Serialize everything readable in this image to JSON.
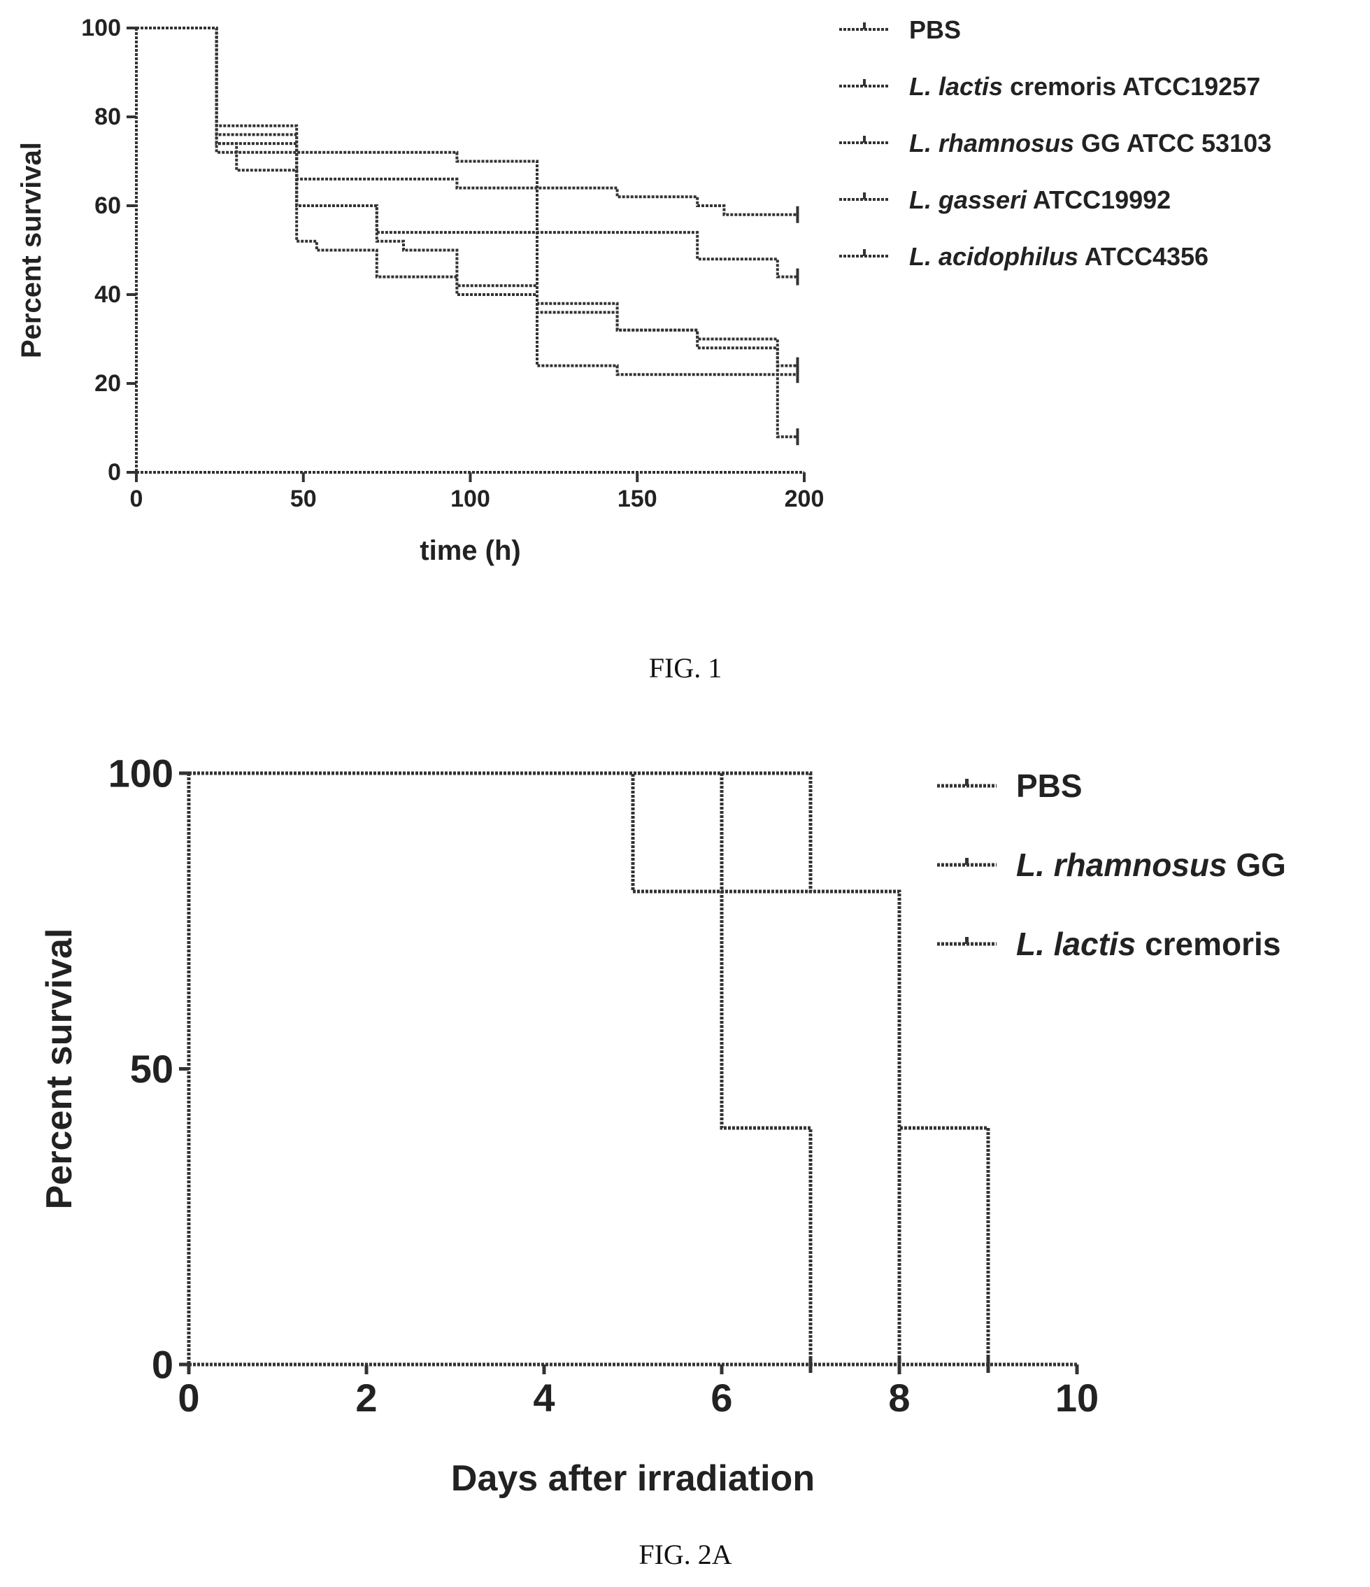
{
  "figures": [
    {
      "caption": "FIG. 1",
      "chart_data": {
        "type": "line",
        "step": true,
        "title": "",
        "xlabel": "time (h)",
        "ylabel": "Percent survival",
        "xlim": [
          0,
          200
        ],
        "ylim": [
          0,
          100
        ],
        "xticks": [
          "0",
          "50",
          "100",
          "150",
          "200"
        ],
        "yticks": [
          "0",
          "20",
          "40",
          "60",
          "80",
          "100"
        ],
        "grid": false,
        "legend_position": "top-right",
        "series": [
          {
            "name": "PBS",
            "name_italic": "",
            "name_rest": "PBS",
            "x": [
              0,
              24,
              30,
              48,
              72,
              96,
              120,
              144,
              168,
              192,
              198
            ],
            "y": [
              100,
              72,
              68,
              60,
              54,
              54,
              54,
              54,
              48,
              44,
              44
            ]
          },
          {
            "name": "L. lactis cremoris ATCC19257",
            "name_italic": "L. lactis",
            "name_rest": " cremoris ATCC19257",
            "x": [
              0,
              24,
              30,
              48,
              72,
              96,
              100,
              144,
              168,
              176,
              198
            ],
            "y": [
              100,
              74,
              72,
              66,
              66,
              64,
              64,
              62,
              60,
              58,
              58
            ]
          },
          {
            "name": "L. rhamnosus GG ATCC 53103",
            "name_italic": "L. rhamnosus",
            "name_rest": " GG ATCC 53103",
            "x": [
              0,
              24,
              48,
              72,
              96,
              120,
              144,
              168,
              192,
              198
            ],
            "y": [
              100,
              76,
              72,
              72,
              70,
              38,
              32,
              28,
              24,
              24
            ]
          },
          {
            "name": "L. gasseri ATCC19992",
            "name_italic": "L. gasseri",
            "name_rest": " ATCC19992",
            "x": [
              0,
              24,
              48,
              54,
              72,
              80,
              96,
              120,
              144,
              168,
              192,
              198
            ],
            "y": [
              100,
              78,
              52,
              50,
              44,
              44,
              40,
              24,
              22,
              22,
              22,
              22
            ]
          },
          {
            "name": "L. acidophilus ATCC4356",
            "name_italic": "L. acidophilus",
            "name_rest": " ATCC4356",
            "x": [
              0,
              24,
              48,
              72,
              80,
              96,
              120,
              144,
              168,
              192,
              198
            ],
            "y": [
              100,
              74,
              60,
              52,
              50,
              42,
              36,
              32,
              30,
              8,
              8
            ]
          }
        ]
      }
    },
    {
      "caption": "FIG. 2A",
      "chart_data": {
        "type": "line",
        "step": true,
        "title": "",
        "xlabel": "Days after irradiation",
        "ylabel": "Percent survival",
        "xlim": [
          0,
          10
        ],
        "ylim": [
          0,
          100
        ],
        "xticks": [
          "0",
          "2",
          "4",
          "6",
          "8",
          "10"
        ],
        "yticks": [
          "0",
          "50",
          "100"
        ],
        "grid": false,
        "legend_position": "top-right",
        "series": [
          {
            "name": "PBS",
            "name_italic": "",
            "name_rest": "PBS",
            "x": [
              0,
              6,
              7
            ],
            "y": [
              100,
              40,
              0
            ]
          },
          {
            "name": "L. rhamnosus GG",
            "name_italic": "L. rhamnosus",
            "name_rest": " GG",
            "x": [
              0,
              5,
              8
            ],
            "y": [
              100,
              80,
              0
            ]
          },
          {
            "name": "L. lactis cremoris",
            "name_italic": "L. lactis",
            "name_rest": " cremoris",
            "x": [
              0,
              7,
              8,
              9
            ],
            "y": [
              100,
              80,
              40,
              0
            ]
          }
        ]
      }
    }
  ]
}
